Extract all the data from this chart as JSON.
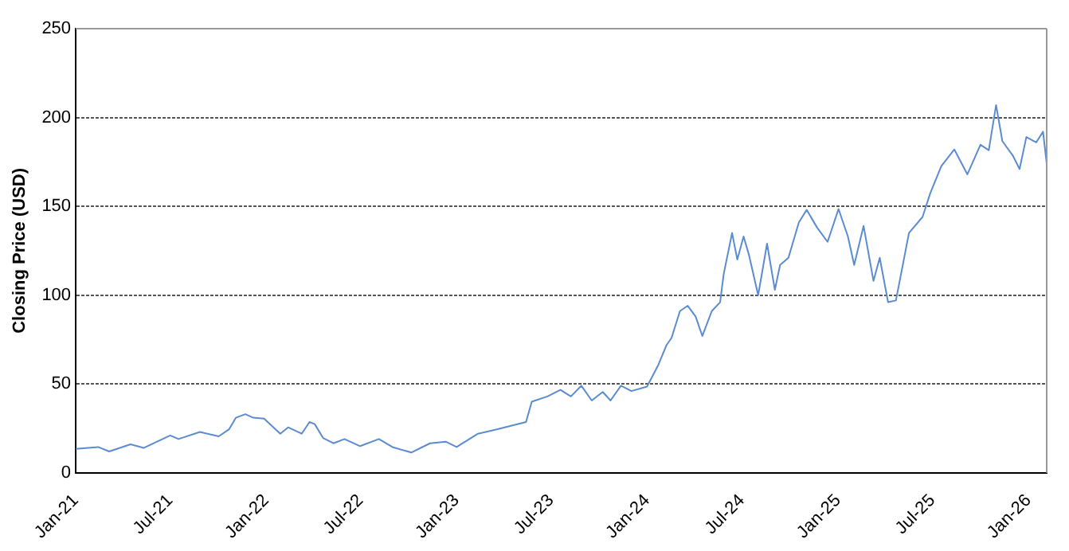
{
  "chart_data": {
    "type": "line",
    "ylabel": "Closing Price (USD)",
    "grid": "y",
    "line_style": "solid",
    "marker": "none",
    "legend": false,
    "xlim": [
      "2021-01-01",
      "2026-02-05"
    ],
    "xticks": [
      {
        "value": "2021-01-01",
        "label": "Jan-21"
      },
      {
        "value": "2021-07-01",
        "label": "Jul-21"
      },
      {
        "value": "2022-01-01",
        "label": "Jan-22"
      },
      {
        "value": "2022-07-01",
        "label": "Jul-22"
      },
      {
        "value": "2023-01-01",
        "label": "Jan-23"
      },
      {
        "value": "2023-07-01",
        "label": "Jul-23"
      },
      {
        "value": "2024-01-01",
        "label": "Jan-24"
      },
      {
        "value": "2024-07-01",
        "label": "Jul-24"
      },
      {
        "value": "2025-01-01",
        "label": "Jan-25"
      },
      {
        "value": "2025-07-01",
        "label": "Jul-25"
      },
      {
        "value": "2026-01-01",
        "label": "Jan-26"
      }
    ],
    "ylim": [
      0,
      250
    ],
    "yticks": [
      0,
      50,
      100,
      150,
      200,
      250
    ],
    "series": [
      {
        "color": "#5b8bd0",
        "x": [
          "2021-01-01",
          "2021-02-13",
          "2021-03-06",
          "2021-04-16",
          "2021-05-11",
          "2021-07-01",
          "2021-07-17",
          "2021-08-27",
          "2021-10-02",
          "2021-10-22",
          "2021-11-04",
          "2021-11-22",
          "2021-12-07",
          "2021-12-28",
          "2022-01-28",
          "2022-02-12",
          "2022-03-10",
          "2022-03-25",
          "2022-04-04",
          "2022-04-20",
          "2022-05-10",
          "2022-05-31",
          "2022-06-30",
          "2022-08-05",
          "2022-08-31",
          "2022-10-06",
          "2022-11-11",
          "2022-12-11",
          "2023-01-01",
          "2023-02-11",
          "2023-03-19",
          "2023-05-14",
          "2023-05-25",
          "2023-06-24",
          "2023-07-19",
          "2023-08-08",
          "2023-08-28",
          "2023-09-17",
          "2023-10-08",
          "2023-10-23",
          "2023-11-12",
          "2023-12-02",
          "2024-01-01",
          "2024-01-23",
          "2024-02-07",
          "2024-02-17",
          "2024-03-04",
          "2024-03-19",
          "2024-04-03",
          "2024-04-16",
          "2024-05-04",
          "2024-05-20",
          "2024-05-27",
          "2024-06-12",
          "2024-06-22",
          "2024-07-04",
          "2024-07-14",
          "2024-08-01",
          "2024-08-18",
          "2024-09-02",
          "2024-09-12",
          "2024-09-28",
          "2024-10-18",
          "2024-11-02",
          "2024-11-22",
          "2024-12-12",
          "2025-01-02",
          "2025-01-20",
          "2025-02-01",
          "2025-02-19",
          "2025-03-10",
          "2025-03-22",
          "2025-04-07",
          "2025-04-22",
          "2025-05-17",
          "2025-06-12",
          "2025-06-27",
          "2025-07-18",
          "2025-08-12",
          "2025-09-06",
          "2025-10-01",
          "2025-10-17",
          "2025-10-31",
          "2025-11-12",
          "2025-12-02",
          "2025-12-15",
          "2025-12-28",
          "2026-01-16",
          "2026-01-29",
          "2026-02-05"
        ],
        "values": [
          13.5,
          14.5,
          12,
          16,
          14,
          21,
          19,
          23,
          20.5,
          24.5,
          31,
          33,
          31,
          30.5,
          22,
          25.6,
          22,
          28.6,
          27.4,
          19.6,
          16.6,
          19,
          15,
          19,
          14.5,
          11.4,
          16.6,
          17.5,
          14.5,
          22,
          24.4,
          28.6,
          40,
          43,
          46.7,
          43,
          49,
          40.7,
          45.5,
          40.7,
          49,
          46,
          48.5,
          61,
          71.7,
          76,
          91,
          94,
          88,
          77,
          91,
          96,
          112,
          135,
          120,
          133,
          123,
          100,
          129,
          103,
          117,
          121,
          141,
          148,
          138,
          130,
          148.5,
          133,
          117,
          139,
          108,
          121,
          96,
          97,
          135,
          144,
          157.5,
          172.6,
          182,
          168,
          184.6,
          181.6,
          207,
          186.7,
          178.6,
          171,
          189,
          186,
          192,
          174
        ]
      }
    ]
  }
}
